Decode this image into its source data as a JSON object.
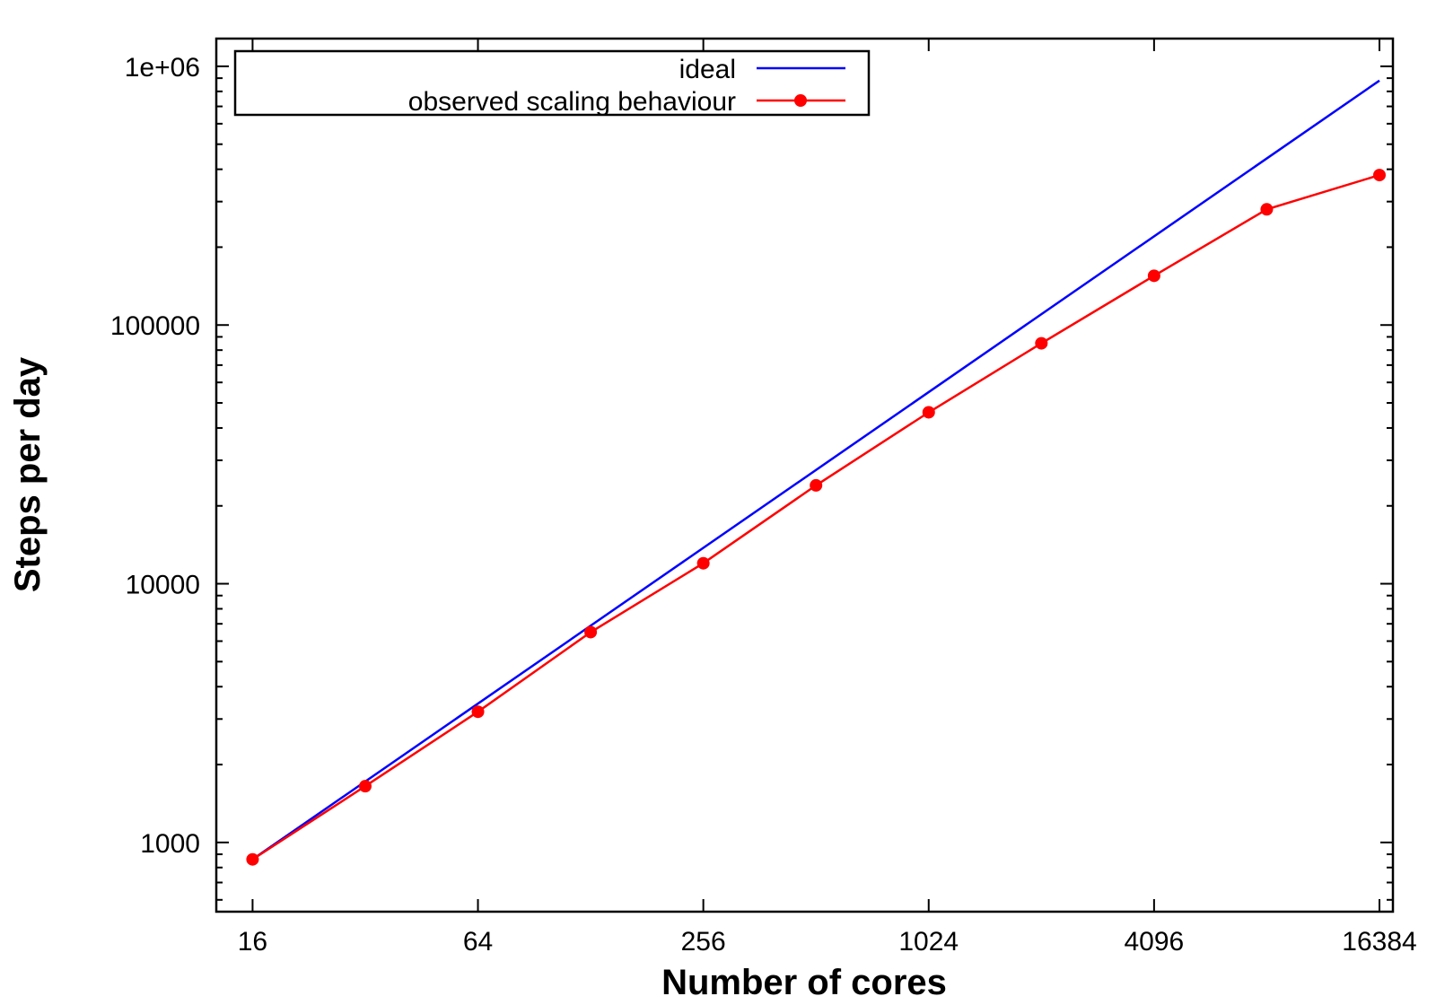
{
  "chart_data": {
    "type": "line",
    "title": "",
    "xlabel": "Number of cores",
    "ylabel": "Steps per day",
    "xscale": "log2",
    "yscale": "log10",
    "xlim": [
      12.8,
      17800
    ],
    "ylim": [
      540,
      1280000
    ],
    "xticks": [
      16,
      64,
      256,
      1024,
      4096,
      16384
    ],
    "xtick_labels": [
      "16",
      "64",
      "256",
      "1024",
      "4096",
      "16384"
    ],
    "yticks": [
      1000,
      10000,
      100000,
      1000000
    ],
    "ytick_labels": [
      "1000",
      "10000",
      "100000",
      "1e+06"
    ],
    "grid": false,
    "legend_position": "top-left",
    "series": [
      {
        "name": "ideal",
        "color": "#0000ff",
        "marker": "none",
        "x": [
          16,
          16384
        ],
        "y": [
          860,
          880640
        ]
      },
      {
        "name": "observed scaling behaviour",
        "color": "#ff0000",
        "marker": "circle",
        "x": [
          16,
          32,
          64,
          128,
          256,
          512,
          1024,
          2048,
          4096,
          8192,
          16384
        ],
        "y": [
          860,
          1650,
          3200,
          6500,
          12000,
          24000,
          46000,
          85000,
          155000,
          280000,
          380000
        ]
      }
    ]
  }
}
